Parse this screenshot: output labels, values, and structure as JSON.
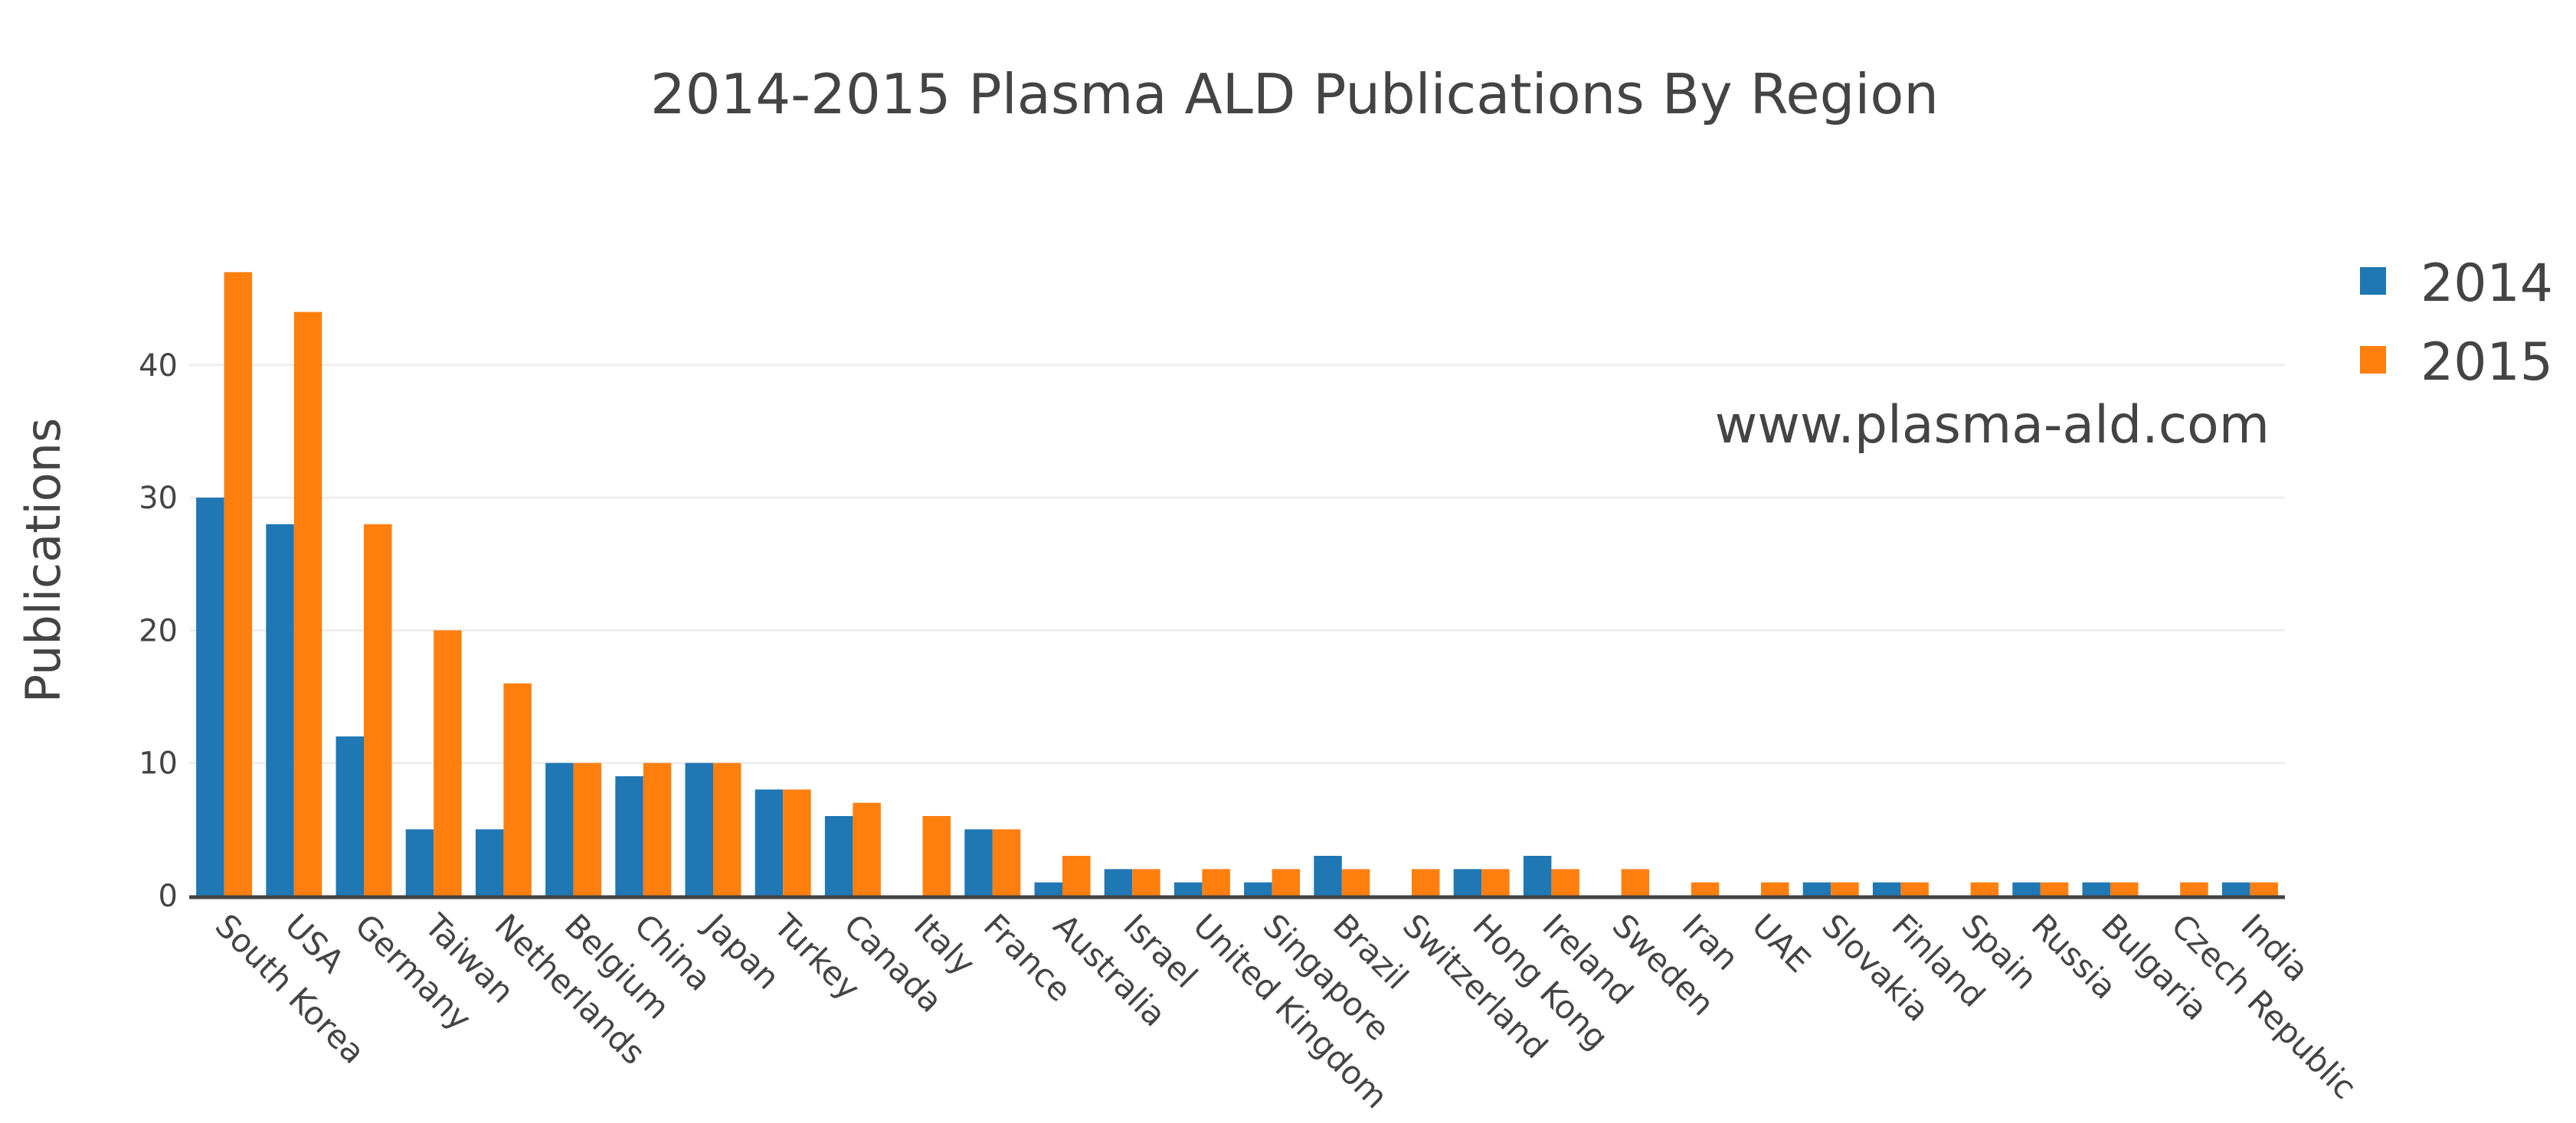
{
  "chart_data": {
    "type": "bar",
    "title": "2014-2015 Plasma ALD Publications By Region",
    "xlabel": "",
    "ylabel": "Publications",
    "ylim": [
      0,
      48
    ],
    "yticks": [
      0,
      10,
      20,
      30,
      40
    ],
    "grid": true,
    "legend_position": "top-right",
    "annotation": "www.plasma-ald.com",
    "categories": [
      "South Korea",
      "USA",
      "Germany",
      "Taiwan",
      "Netherlands",
      "Belgium",
      "China",
      "Japan",
      "Turkey",
      "Canada",
      "Italy",
      "France",
      "Australia",
      "Israel",
      "United Kingdom",
      "Singapore",
      "Brazil",
      "Switzerland",
      "Hong Kong",
      "Ireland",
      "Sweden",
      "Iran",
      "UAE",
      "Slovakia",
      "Finland",
      "Spain",
      "Russia",
      "Bulgaria",
      "Czech Republic",
      "India"
    ],
    "series": [
      {
        "name": "2014",
        "color": "#1f77b4",
        "values": [
          30,
          28,
          12,
          5,
          5,
          10,
          9,
          10,
          8,
          6,
          0,
          5,
          1,
          2,
          1,
          1,
          3,
          0,
          2,
          3,
          0,
          0,
          0,
          1,
          1,
          0,
          1,
          1,
          0,
          1
        ]
      },
      {
        "name": "2015",
        "color": "#ff7f0e",
        "values": [
          47,
          44,
          28,
          20,
          16,
          10,
          10,
          10,
          8,
          7,
          6,
          5,
          3,
          2,
          2,
          2,
          2,
          2,
          2,
          2,
          2,
          1,
          1,
          1,
          1,
          1,
          1,
          1,
          1,
          1
        ]
      }
    ]
  },
  "legend": {
    "items": [
      {
        "label": "2014",
        "color": "#1f77b4"
      },
      {
        "label": "2015",
        "color": "#ff7f0e"
      }
    ]
  }
}
